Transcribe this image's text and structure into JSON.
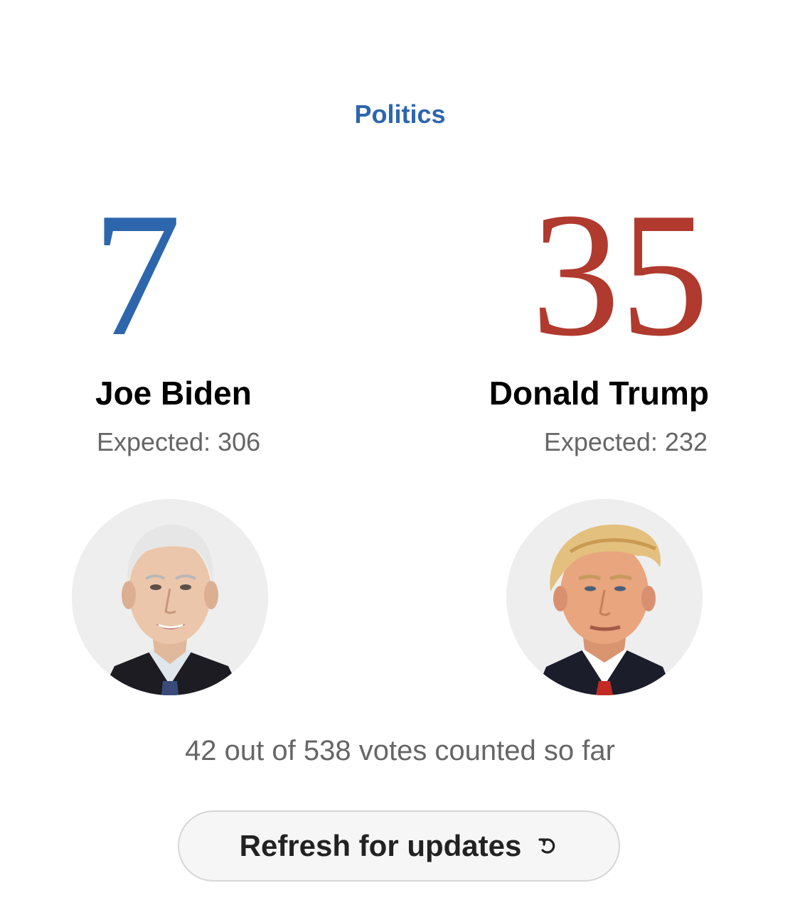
{
  "section": {
    "label": "Politics"
  },
  "colors": {
    "democrat": "#2d66ad",
    "republican": "#b03a2e",
    "muted_text": "#666666"
  },
  "candidates": [
    {
      "name": "Joe Biden",
      "electoral_votes": "7",
      "expected": "Expected: 306",
      "portrait_icon": "biden-portrait"
    },
    {
      "name": "Donald Trump",
      "electoral_votes": "35",
      "expected": "Expected: 232",
      "portrait_icon": "trump-portrait"
    }
  ],
  "summary": {
    "votes_counted": "42 out of 538 votes counted so far"
  },
  "refresh": {
    "label": "Refresh for updates",
    "icon": "refresh-icon"
  }
}
